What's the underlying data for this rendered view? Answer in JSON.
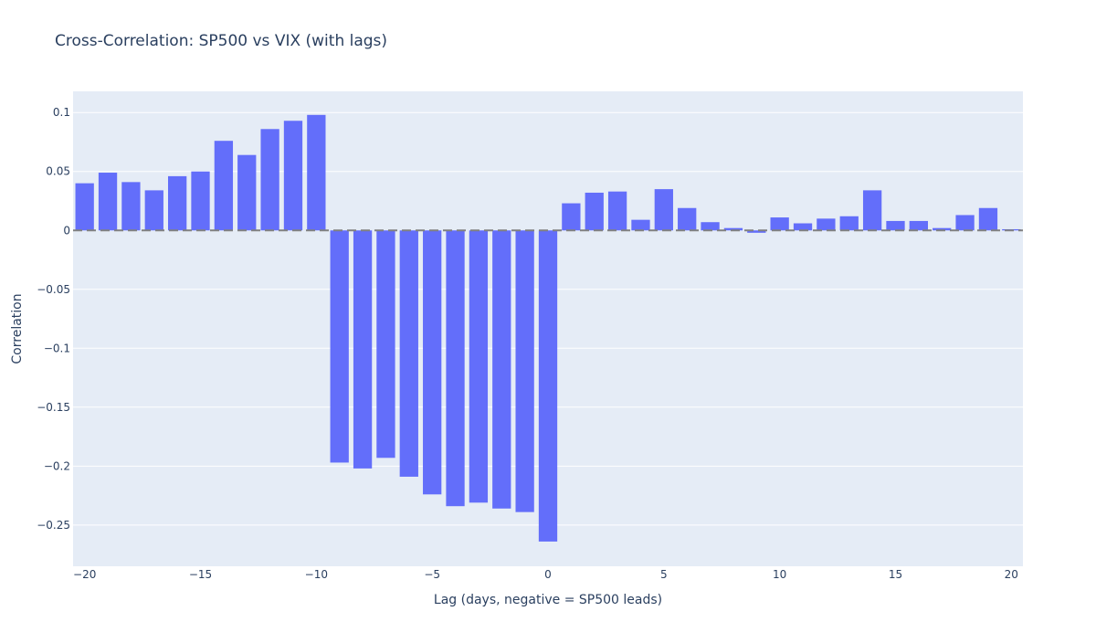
{
  "chart_data": {
    "type": "bar",
    "title": "Cross-Correlation: SP500 vs VIX (with lags)",
    "xlabel": "Lag (days, negative = SP500 leads)",
    "ylabel": "Correlation",
    "xlim": [
      -20.5,
      20.5
    ],
    "ylim": [
      -0.285,
      0.118
    ],
    "x_ticks": [
      -20,
      -15,
      -10,
      -5,
      0,
      5,
      10,
      15,
      20
    ],
    "x_tick_labels": [
      "−20",
      "−15",
      "−10",
      "−5",
      "0",
      "5",
      "10",
      "15",
      "20"
    ],
    "y_ticks": [
      0.1,
      0.05,
      0,
      -0.05,
      -0.1,
      -0.15,
      -0.2,
      -0.25
    ],
    "y_tick_labels": [
      "0.1",
      "0.05",
      "0",
      "−0.05",
      "−0.1",
      "−0.15",
      "−0.2",
      "−0.25"
    ],
    "reference_line": {
      "y": 0,
      "style": "dashed",
      "color": "#808080"
    },
    "grid": true,
    "colors": {
      "bar": "#636efa",
      "plot_bg": "#e5ecf6",
      "grid": "#ffffff",
      "text": "#2a3f5f",
      "tick_text": "#2a3f5f"
    },
    "series": [
      {
        "name": "Correlation",
        "x": [
          -20,
          -19,
          -18,
          -17,
          -16,
          -15,
          -14,
          -13,
          -12,
          -11,
          -10,
          -9,
          -8,
          -7,
          -6,
          -5,
          -4,
          -3,
          -2,
          -1,
          0,
          1,
          2,
          3,
          4,
          5,
          6,
          7,
          8,
          9,
          10,
          11,
          12,
          13,
          14,
          15,
          16,
          17,
          18,
          19,
          20
        ],
        "values": [
          0.04,
          0.049,
          0.041,
          0.034,
          0.046,
          0.05,
          0.076,
          0.064,
          0.086,
          0.093,
          0.098,
          -0.197,
          -0.202,
          -0.193,
          -0.209,
          -0.224,
          -0.234,
          -0.231,
          -0.236,
          -0.239,
          -0.264,
          0.023,
          0.032,
          0.033,
          0.009,
          0.035,
          0.019,
          0.007,
          0.002,
          -0.002,
          0.011,
          0.006,
          0.01,
          0.012,
          0.034,
          0.008,
          0.008,
          0.002,
          0.013,
          0.019,
          0.001
        ]
      }
    ]
  }
}
